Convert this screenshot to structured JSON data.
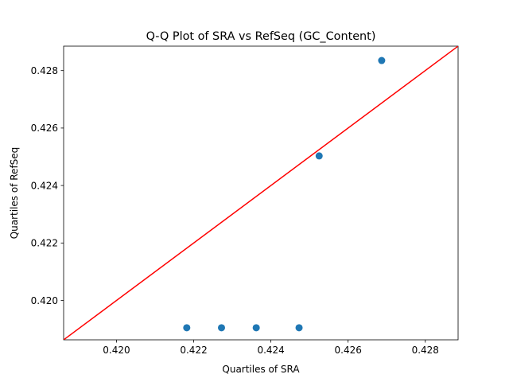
{
  "chart_data": {
    "type": "scatter",
    "title": "Q-Q Plot of SRA vs RefSeq (GC_Content)",
    "xlabel": "Quartiles of SRA",
    "ylabel": "Quartiles of RefSeq",
    "xlim": [
      0.41863,
      0.42885
    ],
    "ylim": [
      0.41863,
      0.42885
    ],
    "xticks": [
      0.42,
      0.422,
      0.424,
      0.426,
      0.428
    ],
    "yticks": [
      0.42,
      0.422,
      0.424,
      0.426,
      0.428
    ],
    "xtick_labels": [
      "0.420",
      "0.422",
      "0.424",
      "0.426",
      "0.428"
    ],
    "ytick_labels": [
      "0.420",
      "0.422",
      "0.424",
      "0.426",
      "0.428"
    ],
    "grid": false,
    "series": [
      {
        "x": [
          0.42182,
          0.42272,
          0.42362,
          0.42473,
          0.42525,
          0.42687
        ],
        "y": [
          0.41905,
          0.41905,
          0.41905,
          0.41905,
          0.42503,
          0.42835
        ],
        "color": "#1f77b4"
      }
    ],
    "reference_line": {
      "from": [
        0.41863,
        0.41863
      ],
      "to": [
        0.42885,
        0.42885
      ],
      "color": "#ff0000"
    }
  }
}
